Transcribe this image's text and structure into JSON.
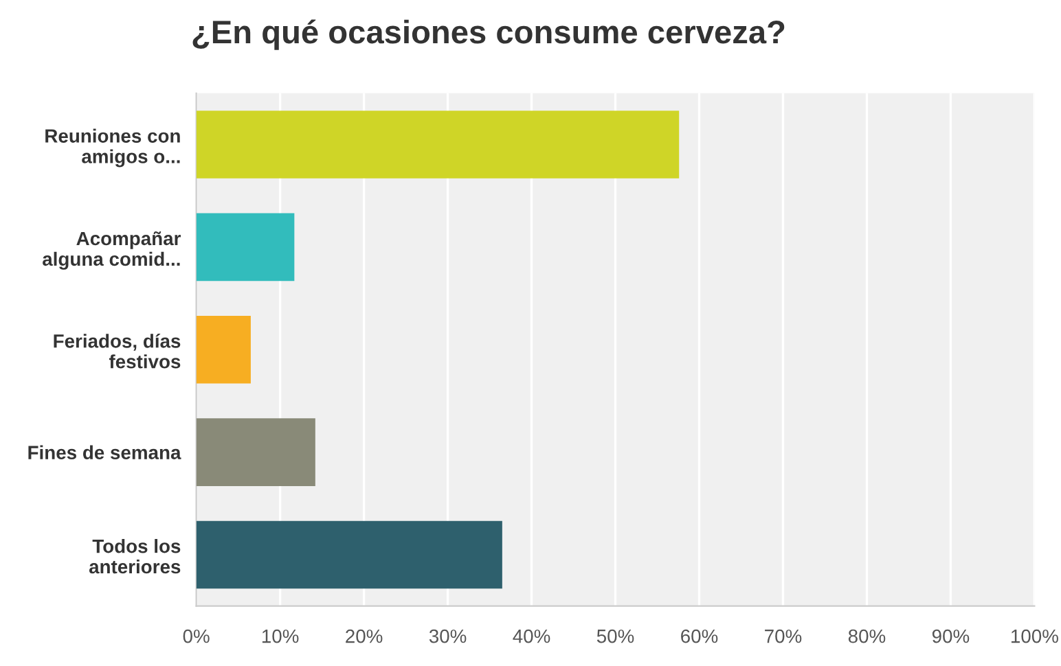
{
  "chart_data": {
    "type": "bar",
    "orientation": "horizontal",
    "title": "¿En qué ocasiones consume cerveza?",
    "categories": [
      "Reuniones con\namigos o...",
      "Acompañar\nalguna comid...",
      "Feriados, días\nfestivos",
      "Fines de semana",
      "Todos los\nanteriores"
    ],
    "values": [
      57.6,
      11.7,
      6.5,
      14.2,
      36.5
    ],
    "colors": [
      "#cfd527",
      "#32bcbc",
      "#f7ae22",
      "#898a78",
      "#2e606d"
    ],
    "xlim": [
      0,
      100
    ],
    "xticks": [
      {
        "value": 0,
        "label": "0%"
      },
      {
        "value": 10,
        "label": "10%"
      },
      {
        "value": 20,
        "label": "20%"
      },
      {
        "value": 30,
        "label": "30%"
      },
      {
        "value": 40,
        "label": "40%"
      },
      {
        "value": 50,
        "label": "50%"
      },
      {
        "value": 60,
        "label": "60%"
      },
      {
        "value": 70,
        "label": "70%"
      },
      {
        "value": 80,
        "label": "80%"
      },
      {
        "value": 90,
        "label": "90%"
      },
      {
        "value": 100,
        "label": "100%"
      }
    ],
    "grid": "x"
  }
}
